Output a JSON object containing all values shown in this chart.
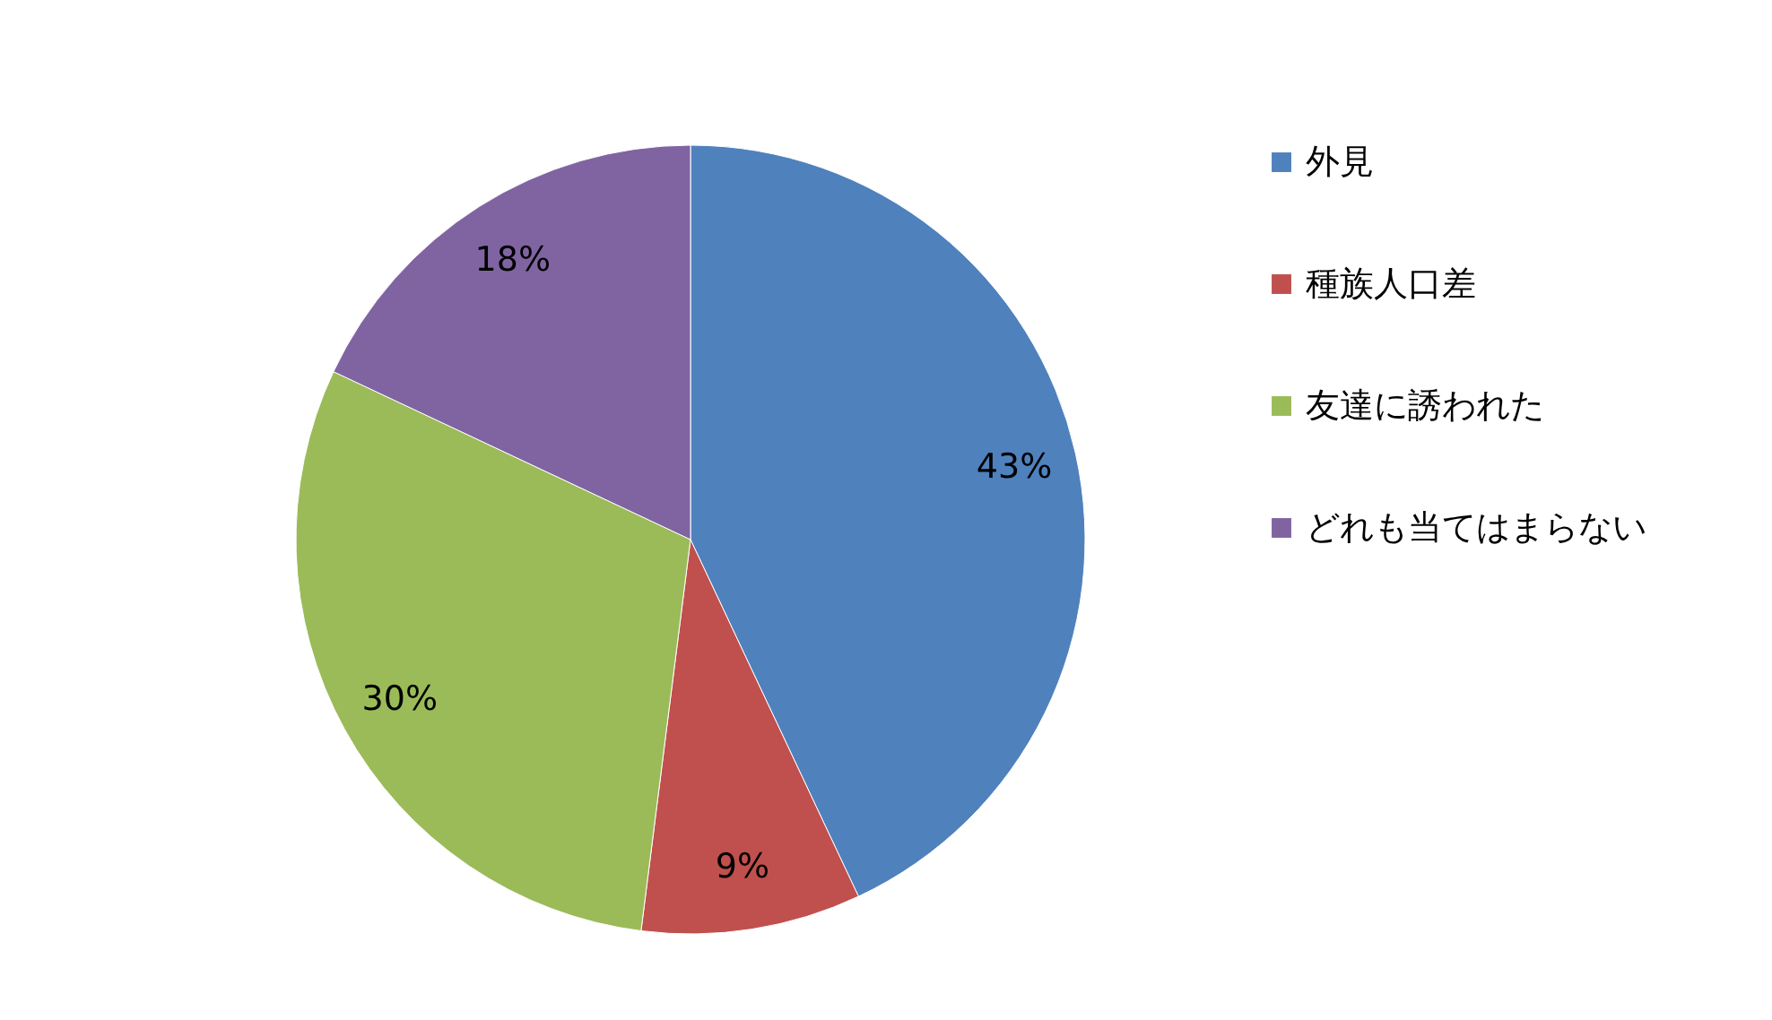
{
  "chart_data": {
    "type": "pie",
    "categories": [
      "外見",
      "種族人口差",
      "友達に誘われた",
      "どれも当てはまらない"
    ],
    "values": [
      43,
      9,
      30,
      18
    ],
    "colors": [
      "#4f81bd",
      "#c0504d",
      "#9bbb59",
      "#8064a2"
    ],
    "value_labels": [
      "43%",
      "9%",
      "30%",
      "18%"
    ],
    "legend": "right"
  }
}
